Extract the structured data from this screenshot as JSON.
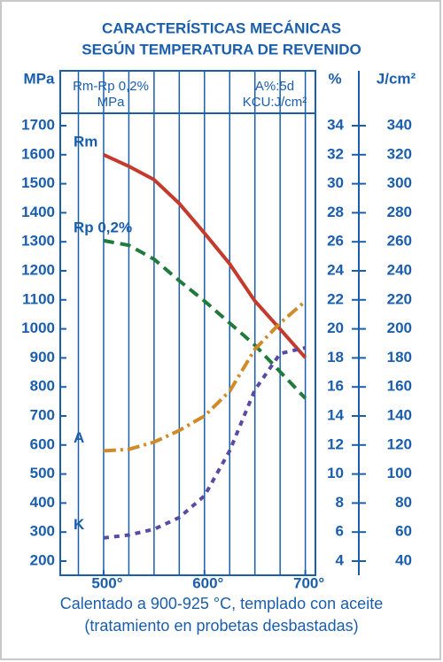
{
  "chart_data": {
    "type": "line",
    "title": [
      "CARACTERÍSTICAS MECÁNICAS",
      "SEGÚN TEMPERATURA DE REVENIDO"
    ],
    "caption": [
      "Calentado a 900-925 °C, templado con aceite",
      "(tratamiento en probetas desbastadas)"
    ],
    "header_left": [
      "Rm-Rp 0,2%",
      "MPa"
    ],
    "header_right": [
      "A%:5d",
      "KCU:J/cm²"
    ],
    "ylabel": "MPa",
    "y2label": "%",
    "y3label": "J/cm²",
    "x": [
      500,
      525,
      550,
      575,
      600,
      625,
      650,
      675,
      700
    ],
    "xlim": [
      457,
      710
    ],
    "xticks": [
      {
        "value": 500,
        "label": "500°"
      },
      {
        "value": 600,
        "label": "600°"
      },
      {
        "value": 700,
        "label": "700°"
      }
    ],
    "xgrid": [
      475,
      500,
      525,
      550,
      575,
      600,
      625,
      650,
      675,
      700
    ],
    "ylim": [
      200,
      1700
    ],
    "yticks": [
      200,
      300,
      400,
      500,
      600,
      700,
      800,
      900,
      1000,
      1100,
      1200,
      1300,
      1400,
      1500,
      1600,
      1700
    ],
    "y2lim": [
      4,
      34
    ],
    "y2ticks": [
      4,
      6,
      8,
      10,
      12,
      14,
      16,
      18,
      20,
      22,
      24,
      26,
      28,
      30,
      32,
      34
    ],
    "y3lim": [
      40,
      340
    ],
    "y3ticks": [
      40,
      60,
      80,
      100,
      120,
      140,
      160,
      180,
      200,
      220,
      240,
      260,
      280,
      300,
      320,
      340
    ],
    "series": [
      {
        "name": "Rm",
        "color": "#c43a2c",
        "style": "solid",
        "axis": "y",
        "values": [
          1600,
          1560,
          1514,
          1432,
          1330,
          1224,
          1096,
          999,
          901
        ]
      },
      {
        "name": "Rp 0,2%",
        "color": "#1f7a3c",
        "style": "dashed",
        "axis": "y",
        "values": [
          1304,
          1288,
          1240,
          1166,
          1096,
          1020,
          944,
          852,
          761
        ]
      },
      {
        "name": "A",
        "color": "#d08a2a",
        "style": "dashdot",
        "axis": "y2",
        "values": [
          11.6,
          11.7,
          12.2,
          13.0,
          14.0,
          15.7,
          18.6,
          20.4,
          21.9
        ]
      },
      {
        "name": "K",
        "color": "#5b4aa3",
        "style": "dotted",
        "axis": "y3",
        "values": [
          56,
          58,
          62,
          70,
          85,
          116,
          158,
          183,
          187
        ]
      }
    ]
  }
}
